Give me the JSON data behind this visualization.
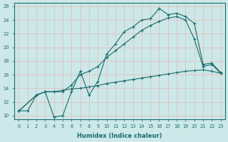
{
  "xlabel": "Humidex (Indice chaleur)",
  "bg_color": "#cce8e8",
  "line_color": "#1a6b6b",
  "grid_color": "#e8b8b8",
  "xlim_min": -0.5,
  "xlim_max": 23.5,
  "ylim_min": 9.5,
  "ylim_max": 26.5,
  "xticks": [
    0,
    1,
    2,
    3,
    4,
    5,
    6,
    7,
    8,
    9,
    10,
    11,
    12,
    13,
    14,
    15,
    16,
    17,
    18,
    19,
    20,
    21,
    22,
    23
  ],
  "yticks": [
    10,
    12,
    14,
    16,
    18,
    20,
    22,
    24,
    26
  ],
  "line1_x": [
    0,
    1,
    2,
    3,
    4,
    5,
    6,
    7,
    8,
    9,
    10,
    11,
    12,
    13,
    14,
    15,
    16,
    17,
    18,
    19,
    20,
    21,
    22,
    23
  ],
  "line1_y": [
    10.7,
    10.7,
    13.0,
    13.5,
    9.8,
    10.0,
    13.5,
    16.5,
    13.0,
    15.0,
    19.0,
    20.5,
    22.3,
    23.0,
    24.0,
    24.2,
    25.7,
    24.8,
    25.0,
    24.5,
    23.5,
    17.5,
    17.7,
    16.3
  ],
  "line2_x": [
    0,
    2,
    3,
    4,
    5,
    6,
    7,
    8,
    9,
    10,
    11,
    12,
    13,
    14,
    15,
    16,
    17,
    18,
    19,
    20,
    21,
    22,
    23
  ],
  "line2_y": [
    10.7,
    13.0,
    13.5,
    13.5,
    13.5,
    14.5,
    16.0,
    16.5,
    17.2,
    18.5,
    19.5,
    20.5,
    21.5,
    22.5,
    23.2,
    23.8,
    24.3,
    24.5,
    24.0,
    21.2,
    17.2,
    17.5,
    16.2
  ],
  "line3_x": [
    0,
    2,
    3,
    4,
    5,
    6,
    7,
    8,
    9,
    10,
    11,
    12,
    13,
    14,
    15,
    16,
    17,
    18,
    19,
    20,
    21,
    22,
    23
  ],
  "line3_y": [
    10.7,
    13.0,
    13.5,
    13.5,
    13.7,
    13.9,
    14.0,
    14.2,
    14.4,
    14.7,
    14.9,
    15.1,
    15.3,
    15.5,
    15.7,
    15.9,
    16.1,
    16.3,
    16.5,
    16.6,
    16.7,
    16.5,
    16.2
  ]
}
